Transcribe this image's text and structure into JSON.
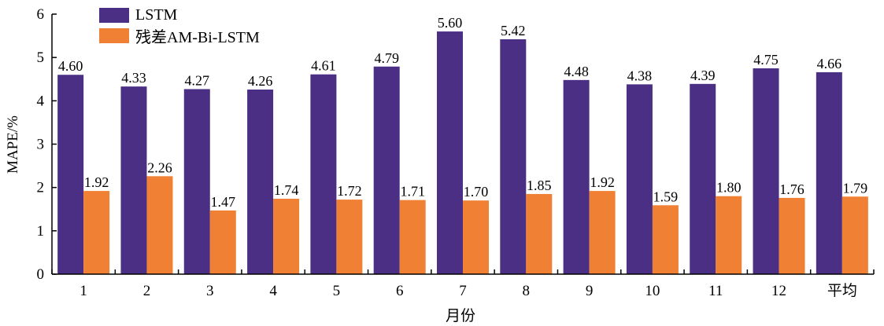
{
  "chart_data": {
    "type": "bar",
    "categories": [
      "1",
      "2",
      "3",
      "4",
      "5",
      "6",
      "7",
      "8",
      "9",
      "10",
      "11",
      "12",
      "平均"
    ],
    "series": [
      {
        "name": "LSTM",
        "color": "#4b2f85",
        "values": [
          4.6,
          4.33,
          4.27,
          4.26,
          4.61,
          4.79,
          5.6,
          5.42,
          4.48,
          4.38,
          4.39,
          4.75,
          4.66
        ],
        "labels": [
          "4.60",
          "4.33",
          "4.27",
          "4.26",
          "4.61",
          "4.79",
          "5.60",
          "5.42",
          "4.48",
          "4.38",
          "4.39",
          "4.75",
          "4.66"
        ]
      },
      {
        "name": "残差AM-Bi-LSTM",
        "color": "#f08033",
        "values": [
          1.92,
          2.26,
          1.47,
          1.74,
          1.72,
          1.71,
          1.7,
          1.85,
          1.92,
          1.59,
          1.8,
          1.76,
          1.79
        ],
        "labels": [
          "1.92",
          "2.26",
          "1.47",
          "1.74",
          "1.72",
          "1.71",
          "1.70",
          "1.85",
          "1.92",
          "1.59",
          "1.80",
          "1.76",
          "1.79"
        ]
      }
    ],
    "xlabel": "月份",
    "ylabel": "MAPE/%",
    "ylim": [
      0,
      6
    ],
    "yticks": [
      "0",
      "1",
      "2",
      "3",
      "4",
      "5",
      "6"
    ],
    "grid": false,
    "legend_position": "top-left"
  }
}
